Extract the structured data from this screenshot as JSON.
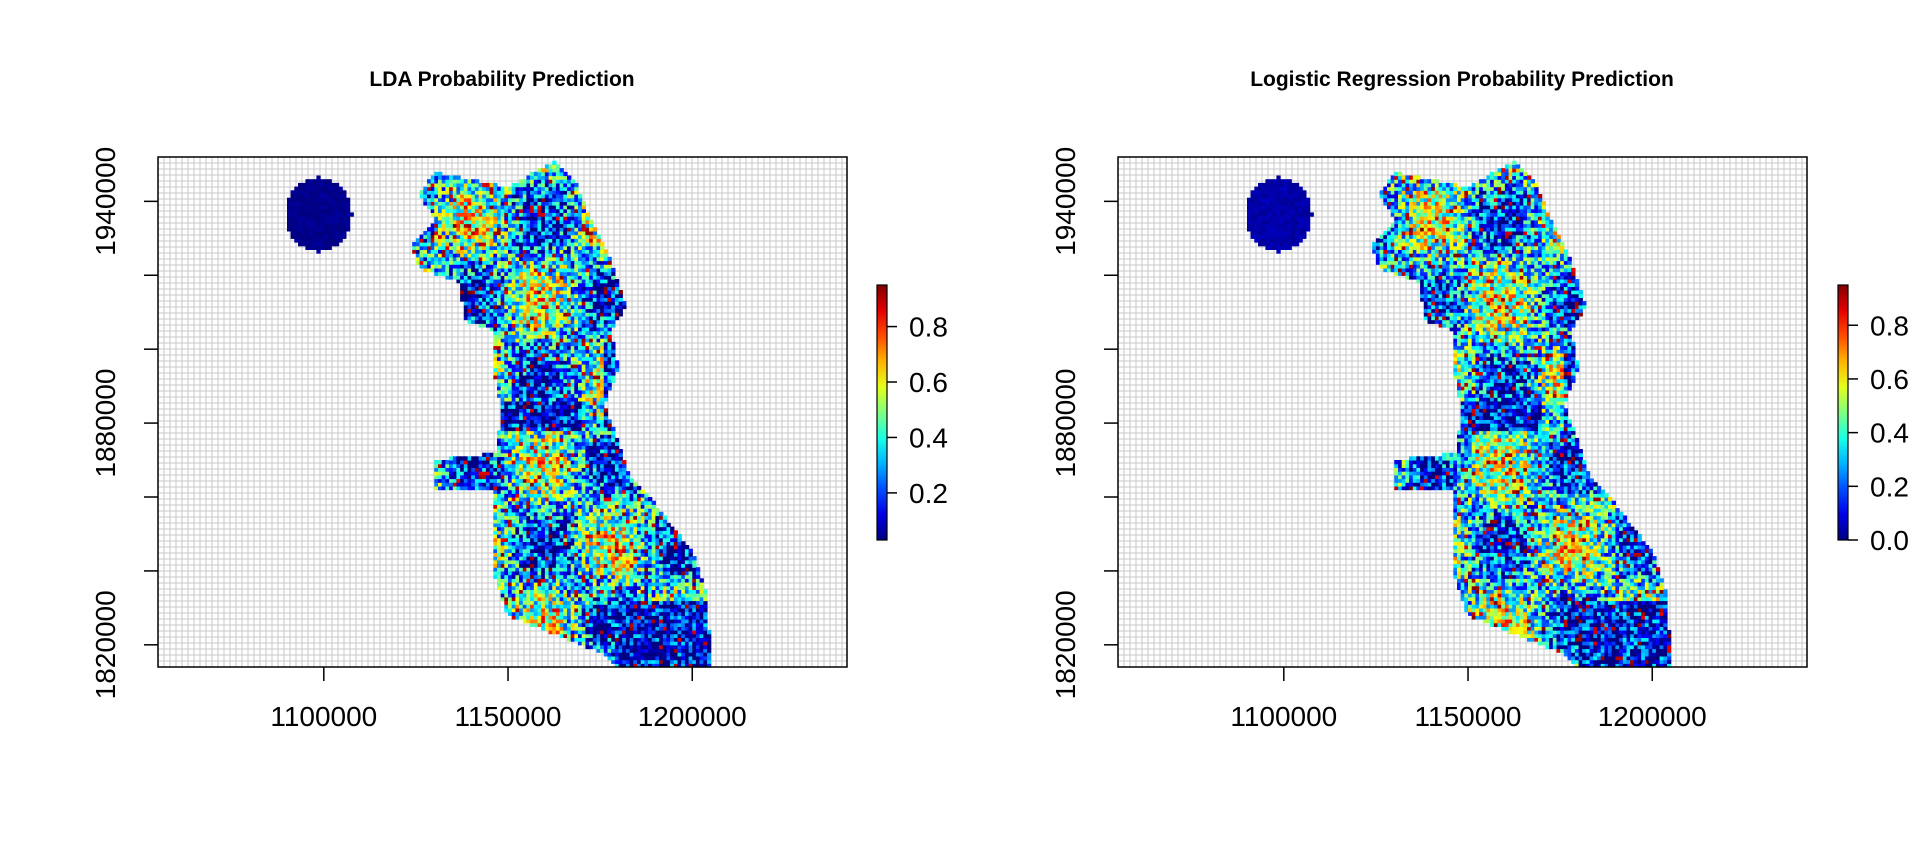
{
  "figure": {
    "layout": "two side-by-side raster heatmap panels with color legends"
  },
  "chart_data": [
    {
      "type": "heatmap",
      "title": "LDA Probability Prediction",
      "xlabel": "",
      "ylabel": "",
      "xlim": [
        1055000,
        1242000
      ],
      "ylim": [
        1814000,
        1952000
      ],
      "x_ticks": [
        1100000,
        1150000,
        1200000
      ],
      "x_tick_labels": [
        "1100000",
        "1150000",
        "1200000"
      ],
      "y_ticks": [
        1820000,
        1840000,
        1860000,
        1880000,
        1900000,
        1920000,
        1940000
      ],
      "y_tick_labels": [
        "1820000",
        "",
        "",
        "1880000",
        "",
        "",
        "1940000"
      ],
      "grid": true,
      "colorbar": {
        "range": [
          0.03,
          0.95
        ],
        "ticks": [
          0.2,
          0.4,
          0.6,
          0.8
        ],
        "tick_labels": [
          "0.2",
          "0.4",
          "0.6",
          "0.8"
        ],
        "position": "right"
      },
      "seed": 11
    },
    {
      "type": "heatmap",
      "title": "Logistic Regression Probability Prediction",
      "xlabel": "",
      "ylabel": "",
      "xlim": [
        1055000,
        1242000
      ],
      "ylim": [
        1814000,
        1952000
      ],
      "x_ticks": [
        1100000,
        1150000,
        1200000
      ],
      "x_tick_labels": [
        "1100000",
        "1150000",
        "1200000"
      ],
      "y_ticks": [
        1820000,
        1840000,
        1860000,
        1880000,
        1900000,
        1920000,
        1940000
      ],
      "y_tick_labels": [
        "1820000",
        "",
        "",
        "1880000",
        "",
        "",
        "1940000"
      ],
      "grid": true,
      "colorbar": {
        "range": [
          0.0,
          0.95
        ],
        "ticks": [
          0.0,
          0.2,
          0.4,
          0.6,
          0.8
        ],
        "tick_labels": [
          "0.0",
          "0.2",
          "0.4",
          "0.6",
          "0.8"
        ],
        "position": "right"
      },
      "seed": 23
    }
  ]
}
